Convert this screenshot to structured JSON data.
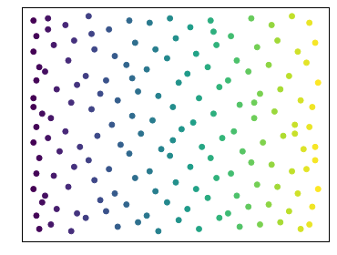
{
  "chart_data": {
    "type": "scatter",
    "x": [
      0.01,
      0.02,
      0.01,
      0.03,
      0.02,
      0.01,
      0.04,
      0.02,
      0.01,
      0.03,
      0.02,
      0.01,
      0.04,
      0.02,
      0.03,
      0.01,
      0.06,
      0.08,
      0.05,
      0.09,
      0.07,
      0.06,
      0.1,
      0.08,
      0.05,
      0.09,
      0.07,
      0.06,
      0.12,
      0.15,
      0.13,
      0.16,
      0.14,
      0.12,
      0.17,
      0.15,
      0.13,
      0.16,
      0.14,
      0.2,
      0.22,
      0.19,
      0.24,
      0.21,
      0.23,
      0.2,
      0.22,
      0.24,
      0.19,
      0.21,
      0.27,
      0.29,
      0.26,
      0.3,
      0.28,
      0.31,
      0.27,
      0.29,
      0.26,
      0.3,
      0.34,
      0.36,
      0.33,
      0.37,
      0.35,
      0.38,
      0.34,
      0.36,
      0.33,
      0.37,
      0.35,
      0.41,
      0.43,
      0.4,
      0.44,
      0.42,
      0.45,
      0.41,
      0.43,
      0.4,
      0.44,
      0.48,
      0.5,
      0.47,
      0.51,
      0.49,
      0.52,
      0.48,
      0.5,
      0.47,
      0.51,
      0.49,
      0.55,
      0.57,
      0.54,
      0.58,
      0.56,
      0.59,
      0.55,
      0.57,
      0.54,
      0.58,
      0.62,
      0.64,
      0.61,
      0.65,
      0.63,
      0.66,
      0.62,
      0.64,
      0.61,
      0.65,
      0.63,
      0.69,
      0.71,
      0.68,
      0.72,
      0.7,
      0.73,
      0.69,
      0.71,
      0.68,
      0.72,
      0.76,
      0.78,
      0.75,
      0.79,
      0.77,
      0.8,
      0.76,
      0.78,
      0.75,
      0.79,
      0.77,
      0.83,
      0.85,
      0.82,
      0.86,
      0.84,
      0.87,
      0.83,
      0.85,
      0.82,
      0.86,
      0.9,
      0.92,
      0.89,
      0.93,
      0.91,
      0.94,
      0.9,
      0.92,
      0.89,
      0.93,
      0.91,
      0.96,
      0.98,
      0.95,
      0.99,
      0.97,
      0.96,
      0.98,
      0.95,
      0.99,
      0.97,
      0.96,
      0.98
    ],
    "values": [
      0.97,
      0.9,
      0.83,
      0.76,
      0.7,
      0.62,
      0.55,
      0.49,
      0.42,
      0.35,
      0.28,
      0.21,
      0.15,
      0.09,
      0.03,
      0.58,
      0.98,
      0.86,
      0.74,
      0.66,
      0.53,
      0.44,
      0.38,
      0.27,
      0.18,
      0.12,
      0.05,
      0.93,
      0.95,
      0.88,
      0.79,
      0.68,
      0.6,
      0.47,
      0.4,
      0.31,
      0.22,
      0.1,
      0.02,
      0.99,
      0.84,
      0.72,
      0.64,
      0.57,
      0.45,
      0.34,
      0.25,
      0.16,
      0.08,
      0.91,
      0.93,
      0.81,
      0.7,
      0.61,
      0.5,
      0.41,
      0.3,
      0.19,
      0.11,
      0.04,
      0.97,
      0.87,
      0.77,
      0.65,
      0.54,
      0.46,
      0.37,
      0.26,
      0.14,
      0.06,
      0.71,
      0.96,
      0.84,
      0.75,
      0.63,
      0.52,
      0.39,
      0.29,
      0.2,
      0.09,
      0.02,
      0.98,
      0.89,
      0.8,
      0.69,
      0.58,
      0.48,
      0.36,
      0.24,
      0.15,
      0.07,
      0.43,
      0.94,
      0.82,
      0.73,
      0.62,
      0.51,
      0.4,
      0.31,
      0.21,
      0.12,
      0.03,
      0.97,
      0.86,
      0.76,
      0.67,
      0.55,
      0.44,
      0.35,
      0.26,
      0.17,
      0.08,
      0.92,
      0.9,
      0.79,
      0.7,
      0.59,
      0.47,
      0.38,
      0.28,
      0.18,
      0.1,
      0.04,
      0.98,
      0.85,
      0.74,
      0.64,
      0.53,
      0.42,
      0.33,
      0.23,
      0.13,
      0.05,
      0.6,
      0.95,
      0.88,
      0.77,
      0.66,
      0.56,
      0.45,
      0.32,
      0.22,
      0.14,
      0.06,
      0.99,
      0.83,
      0.72,
      0.61,
      0.5,
      0.39,
      0.29,
      0.19,
      0.11,
      0.03,
      0.46,
      0.96,
      0.87,
      0.78,
      0.69,
      0.58,
      0.49,
      0.4,
      0.3,
      0.21,
      0.13,
      0.05,
      0.34
    ],
    "xlim": [
      -0.03,
      1.03
    ],
    "ylim": [
      -0.03,
      1.03
    ],
    "color": "viridis",
    "grid": false,
    "tick_labels": false
  }
}
